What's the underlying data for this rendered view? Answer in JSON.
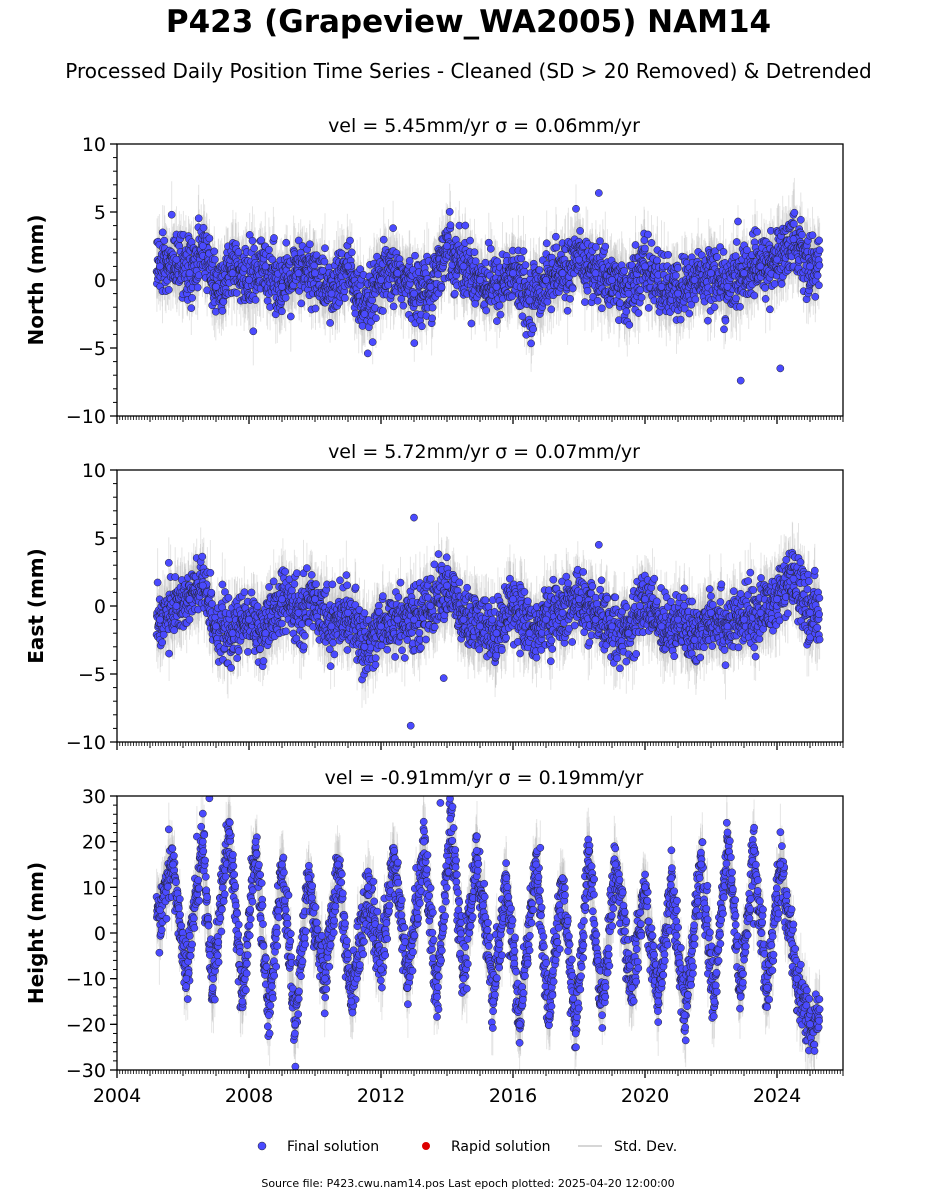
{
  "title": "P423 (Grapeview_WA2005) NAM14",
  "subtitle": "Processed Daily Position Time Series - Cleaned (SD > 20 Removed) & Detrended",
  "legend": [
    {
      "label": "Final solution",
      "color": "#4a4aff",
      "marker": "circle"
    },
    {
      "label": "Rapid solution",
      "color": "#dd0000",
      "marker": "circle"
    },
    {
      "label": "Std. Dev.",
      "color": "#c8c8c8",
      "marker": "line"
    }
  ],
  "footer": "Source file: P423.cwu.nam14.pos  Last epoch plotted: 2025-04-20 12:00:00",
  "chart_data": [
    {
      "type": "scatter",
      "title": "vel = 5.45mm/yr   σ = 0.06mm/yr",
      "xlabel": "",
      "ylabel": "North (mm)",
      "xlim": [
        2004,
        2026
      ],
      "ylim": [
        -10,
        10
      ],
      "yticks": [
        "10",
        "5",
        "0",
        "−5",
        "−10"
      ],
      "xticks": [],
      "data_range_years": [
        2005.2,
        2025.3
      ],
      "series": [
        {
          "name": "Final solution",
          "color": "#4a4aff",
          "x": [
            2005.3,
            2005.8,
            2006.2,
            2006.6,
            2007.0,
            2007.5,
            2008.0,
            2008.5,
            2009.0,
            2009.5,
            2010.0,
            2010.5,
            2011.0,
            2011.5,
            2012.0,
            2012.5,
            2013.0,
            2013.5,
            2014.0,
            2014.5,
            2015.0,
            2015.5,
            2016.0,
            2016.5,
            2017.0,
            2017.5,
            2018.0,
            2018.5,
            2019.0,
            2019.5,
            2020.0,
            2020.5,
            2021.0,
            2021.5,
            2022.0,
            2022.5,
            2023.0,
            2023.5,
            2024.0,
            2024.5,
            2025.0,
            2018.6,
            2022.9,
            2024.1,
            2011.6
          ],
          "y": [
            1.0,
            1.5,
            0.5,
            2.5,
            -0.5,
            0.5,
            0.0,
            1.0,
            -0.5,
            0.5,
            0.5,
            -1.0,
            1.0,
            -2.5,
            0.0,
            0.5,
            -1.0,
            -0.5,
            2.5,
            1.0,
            0.0,
            -0.5,
            0.5,
            -1.5,
            0.0,
            0.5,
            1.5,
            0.5,
            0.0,
            -1.0,
            1.0,
            -0.5,
            -1.0,
            0.0,
            0.5,
            -0.5,
            0.5,
            1.0,
            1.5,
            3.0,
            1.0,
            6.4,
            -7.4,
            -6.5,
            -5.4
          ]
        }
      ]
    },
    {
      "type": "scatter",
      "title": "vel = 5.72mm/yr   σ = 0.07mm/yr",
      "xlabel": "",
      "ylabel": "East (mm)",
      "xlim": [
        2004,
        2026
      ],
      "ylim": [
        -10,
        10
      ],
      "yticks": [
        "10",
        "5",
        "0",
        "−5",
        "−10"
      ],
      "xticks": [],
      "data_range_years": [
        2005.2,
        2025.3
      ],
      "series": [
        {
          "name": "Final solution",
          "color": "#4a4aff",
          "x": [
            2005.3,
            2005.8,
            2006.2,
            2006.6,
            2007.0,
            2007.5,
            2008.0,
            2008.5,
            2009.0,
            2009.5,
            2010.0,
            2010.5,
            2011.0,
            2011.5,
            2012.0,
            2012.5,
            2013.0,
            2013.5,
            2014.0,
            2014.5,
            2015.0,
            2015.5,
            2016.0,
            2016.5,
            2017.0,
            2017.5,
            2018.0,
            2018.5,
            2019.0,
            2019.5,
            2020.0,
            2020.5,
            2021.0,
            2021.5,
            2022.0,
            2022.5,
            2023.0,
            2023.5,
            2024.0,
            2024.5,
            2025.0,
            2013.0,
            2012.9,
            2018.6,
            2013.9
          ],
          "y": [
            -1.0,
            0.0,
            0.5,
            1.5,
            -1.5,
            -2.0,
            -1.0,
            -2.0,
            0.5,
            -0.5,
            0.5,
            -1.5,
            -0.5,
            -3.0,
            -1.5,
            -1.0,
            -1.0,
            0.0,
            1.5,
            -1.0,
            -1.5,
            -2.0,
            0.5,
            -2.0,
            -1.0,
            -0.5,
            0.5,
            -1.0,
            -1.5,
            -2.0,
            0.5,
            -1.5,
            -1.0,
            -2.5,
            -0.5,
            -1.5,
            -1.0,
            -0.5,
            0.5,
            2.0,
            -0.5,
            6.5,
            -8.8,
            4.5,
            -5.3
          ]
        }
      ]
    },
    {
      "type": "scatter",
      "title": "vel = -0.91mm/yr   σ = 0.19mm/yr",
      "xlabel": "",
      "ylabel": "Height (mm)",
      "xlim": [
        2004,
        2026
      ],
      "ylim": [
        -30,
        30
      ],
      "yticks": [
        "30",
        "20",
        "10",
        "0",
        "−10",
        "−20",
        "−30"
      ],
      "xticks": [
        "2004",
        "2008",
        "2012",
        "2016",
        "2020",
        "2024"
      ],
      "data_range_years": [
        2005.2,
        2025.3
      ],
      "series": [
        {
          "name": "Final solution",
          "color": "#4a4aff",
          "x": [
            2005.3,
            2005.7,
            2006.1,
            2006.6,
            2006.9,
            2007.4,
            2007.8,
            2008.2,
            2008.6,
            2009.0,
            2009.4,
            2009.8,
            2010.3,
            2010.7,
            2011.1,
            2011.6,
            2012.0,
            2012.4,
            2012.8,
            2013.3,
            2013.7,
            2014.1,
            2014.5,
            2014.9,
            2015.4,
            2015.8,
            2016.2,
            2016.7,
            2017.1,
            2017.5,
            2017.9,
            2018.3,
            2018.7,
            2019.1,
            2019.6,
            2020.0,
            2020.4,
            2020.8,
            2021.2,
            2021.7,
            2022.1,
            2022.5,
            2022.9,
            2023.3,
            2023.7,
            2024.1,
            2024.6,
            2025.0,
            2006.8,
            2013.8
          ],
          "y": [
            5,
            15,
            -10,
            20,
            -12,
            22,
            -15,
            20,
            -18,
            15,
            -20,
            12,
            -10,
            15,
            -15,
            10,
            -8,
            18,
            -12,
            20,
            -14,
            25,
            -10,
            18,
            -15,
            12,
            -20,
            15,
            -18,
            12,
            -22,
            18,
            -18,
            15,
            -12,
            10,
            -15,
            12,
            -18,
            15,
            -15,
            22,
            -14,
            18,
            -12,
            15,
            -10,
            -20,
            29.5,
            28.5
          ]
        }
      ]
    }
  ]
}
